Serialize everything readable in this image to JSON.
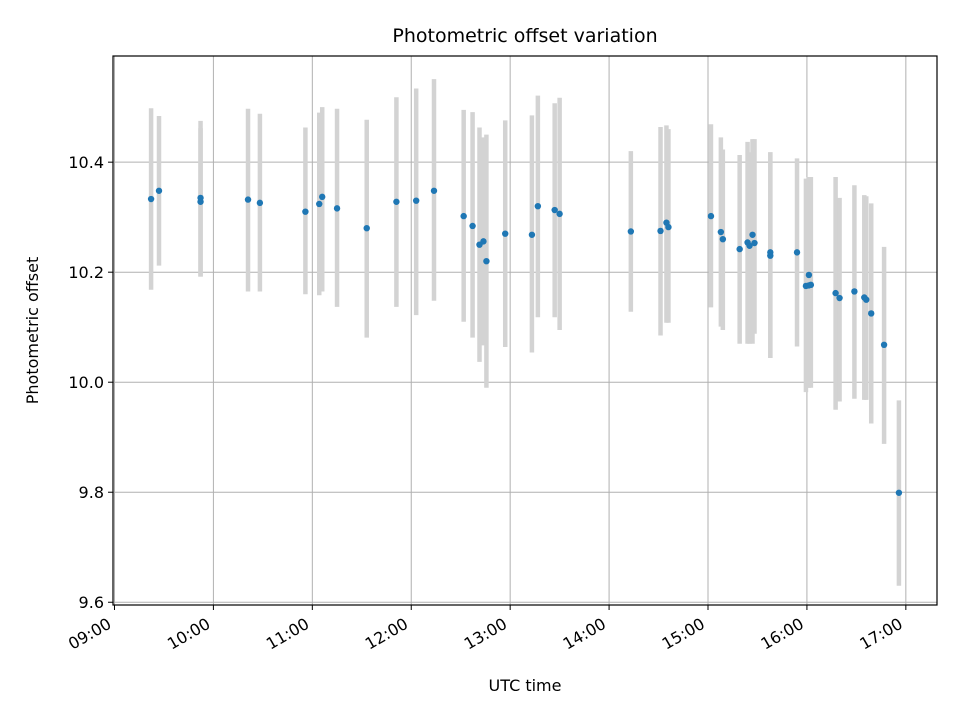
{
  "chart_data": {
    "type": "scatter",
    "title": "Photometric offset variation",
    "xlabel": "UTC time",
    "ylabel": "Photometric offset",
    "xaxis_unit": "UTC time of day (hours)",
    "xlim": [
      8.985,
      17.315
    ],
    "ylim": [
      9.595,
      10.593
    ],
    "xticks": [
      "09:00",
      "10:00",
      "11:00",
      "12:00",
      "13:00",
      "14:00",
      "15:00",
      "16:00",
      "17:00"
    ],
    "yticks": [
      "9.6",
      "9.8",
      "10.0",
      "10.2",
      "10.4"
    ],
    "grid": true,
    "point_color": "#1f77b4",
    "errorbar_color": "#d3d3d3",
    "series": [
      {
        "x": [
          9.37,
          9.45,
          9.87,
          9.87,
          10.35,
          10.47,
          10.93,
          11.07,
          11.1,
          11.25,
          11.55,
          11.85,
          12.05,
          12.23,
          12.53,
          12.62,
          12.69,
          12.73,
          12.76,
          12.95,
          13.22,
          13.28,
          13.45,
          13.5,
          14.22,
          14.52,
          14.58,
          14.6,
          15.03,
          15.13,
          15.15,
          15.32,
          15.4,
          15.42,
          15.45,
          15.47,
          15.63,
          15.63,
          15.9,
          15.99,
          16.02,
          16.02,
          16.04,
          16.29,
          16.33,
          16.48,
          16.58,
          16.6,
          16.65,
          16.78,
          16.93
        ],
        "y": [
          10.333,
          10.348,
          10.335,
          10.328,
          10.332,
          10.326,
          10.31,
          10.324,
          10.337,
          10.316,
          10.28,
          10.328,
          10.33,
          10.348,
          10.302,
          10.284,
          10.25,
          10.256,
          10.22,
          10.27,
          10.268,
          10.32,
          10.313,
          10.306,
          10.274,
          10.275,
          10.29,
          10.282,
          10.302,
          10.273,
          10.26,
          10.242,
          10.254,
          10.248,
          10.268,
          10.253,
          10.236,
          10.23,
          10.236,
          10.175,
          10.195,
          10.176,
          10.177,
          10.162,
          10.153,
          10.165,
          10.154,
          10.15,
          10.125,
          10.068,
          9.799
        ],
        "err_low": [
          10.168,
          10.212,
          10.192,
          10.192,
          10.165,
          10.165,
          10.16,
          10.158,
          10.165,
          10.137,
          10.081,
          10.137,
          10.122,
          10.148,
          10.11,
          10.081,
          10.037,
          10.067,
          9.99,
          10.064,
          10.054,
          10.118,
          10.118,
          10.095,
          10.128,
          10.085,
          10.108,
          10.108,
          10.136,
          10.101,
          10.095,
          10.07,
          10.07,
          10.07,
          10.07,
          10.088,
          10.044,
          10.044,
          10.065,
          9.982,
          9.99,
          9.99,
          9.99,
          9.95,
          9.965,
          9.97,
          9.968,
          9.968,
          9.925,
          9.888,
          9.63
        ],
        "err_high": [
          10.498,
          10.484,
          10.475,
          10.462,
          10.497,
          10.488,
          10.463,
          10.49,
          10.5,
          10.497,
          10.477,
          10.518,
          10.534,
          10.551,
          10.495,
          10.491,
          10.463,
          10.445,
          10.45,
          10.476,
          10.485,
          10.521,
          10.507,
          10.517,
          10.42,
          10.464,
          10.467,
          10.46,
          10.469,
          10.445,
          10.423,
          10.413,
          10.437,
          10.418,
          10.442,
          10.442,
          10.418,
          10.418,
          10.407,
          10.37,
          10.373,
          10.373,
          10.373,
          10.373,
          10.335,
          10.358,
          10.34,
          10.338,
          10.325,
          10.246,
          9.967
        ]
      }
    ]
  }
}
